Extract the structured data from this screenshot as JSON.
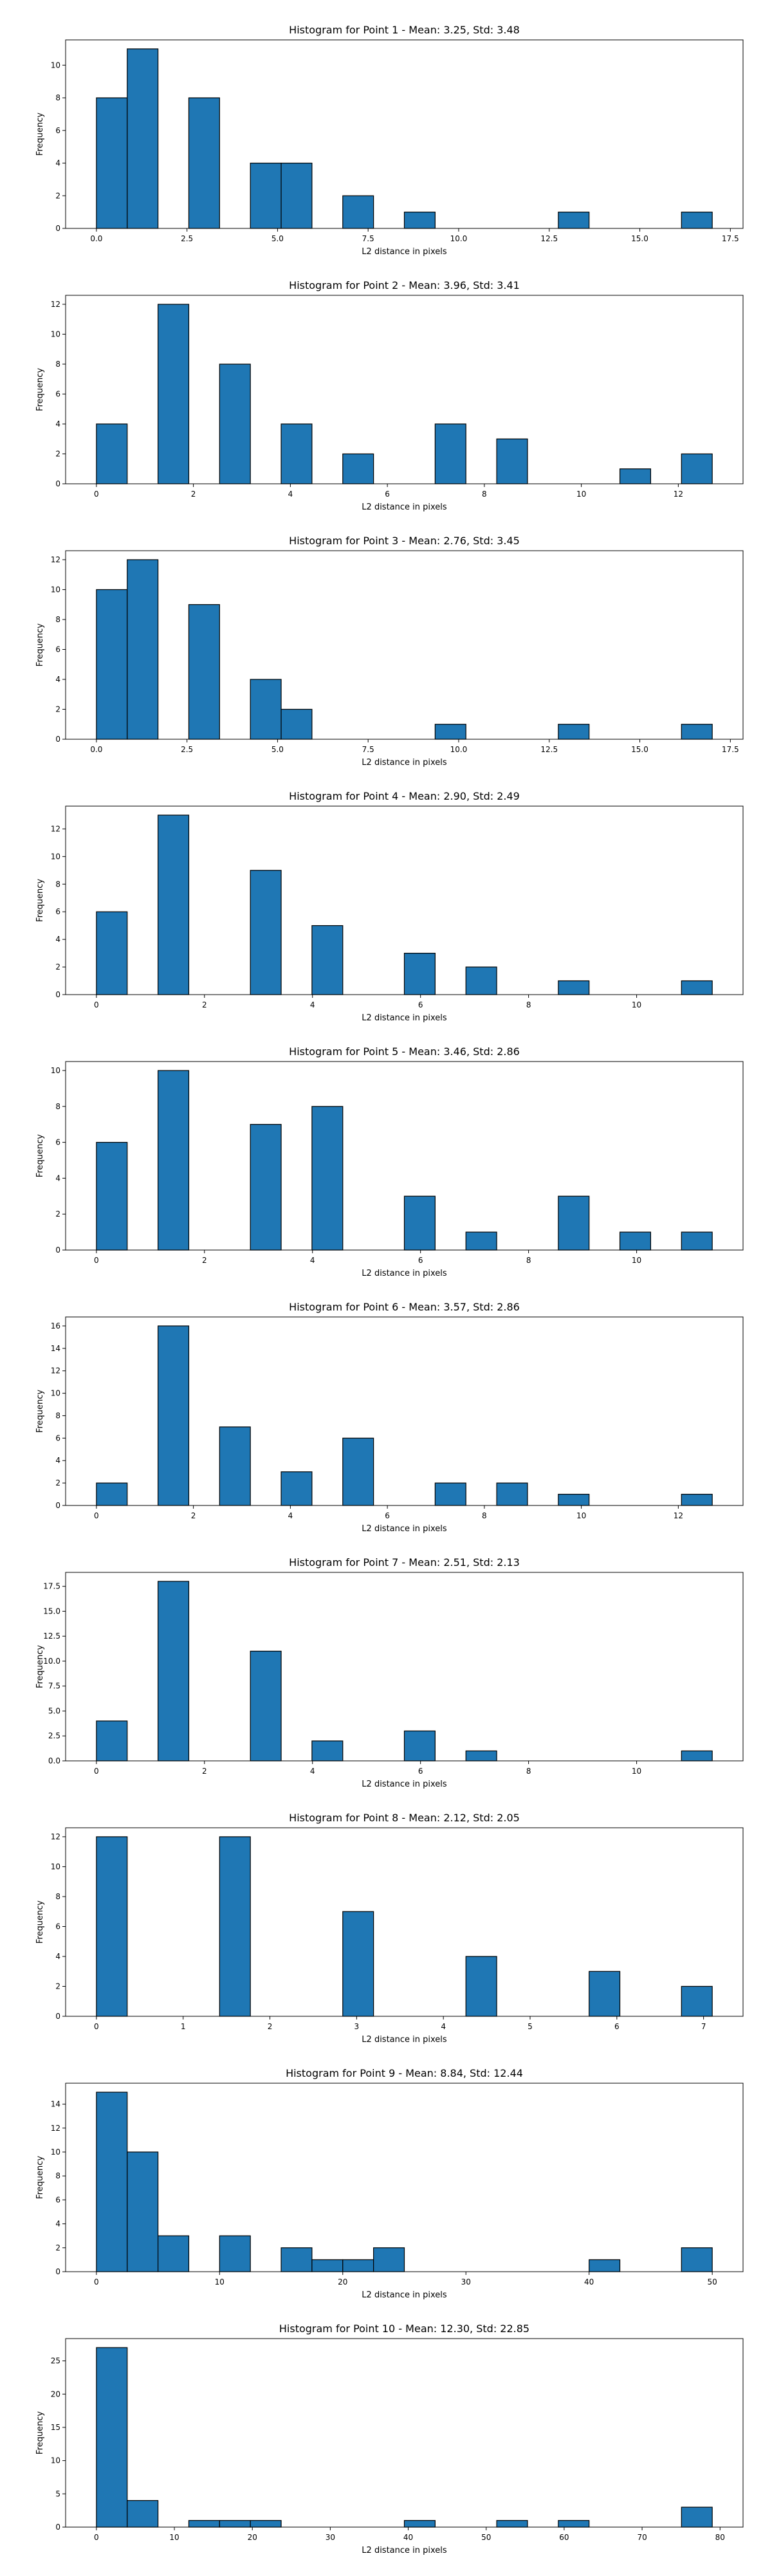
{
  "chart_data": [
    {
      "type": "histogram",
      "title": "Histogram for Point 1 - Mean: 3.25, Std: 3.48",
      "x_label": "L2 distance in pixels",
      "y_label": "Frequency",
      "color": "#1f77b4",
      "edge_color": "#000000",
      "bins": [
        0,
        0.85,
        1.7,
        2.55,
        3.4,
        4.25,
        5.1,
        5.95,
        6.8,
        7.65,
        8.5,
        9.35,
        10.2,
        11.05,
        11.9,
        12.75,
        13.6,
        14.45,
        15.3,
        16.15,
        17
      ],
      "values": [
        8,
        11,
        0,
        8,
        0,
        4,
        4,
        0,
        2,
        0,
        1,
        0,
        0,
        0,
        0,
        1,
        0,
        0,
        0,
        1
      ],
      "xlim": [
        -0.85,
        17.85
      ],
      "xticks": [
        {
          "value": 0,
          "label": "0.0"
        },
        2.5,
        {
          "value": 5,
          "label": "5.0"
        },
        7.5,
        {
          "value": 10,
          "label": "10.0"
        },
        12.5,
        {
          "value": 15,
          "label": "15.0"
        },
        17.5
      ],
      "ylim": [
        0,
        11.55
      ],
      "yticks": [
        0,
        2,
        4,
        6,
        8,
        10
      ]
    },
    {
      "type": "histogram",
      "title": "Histogram for Point 2 - Mean: 3.96, Std: 3.41",
      "x_label": "L2 distance in pixels",
      "y_label": "Frequency",
      "color": "#1f77b4",
      "edge_color": "#000000",
      "bins": [
        0,
        0.635,
        1.27,
        1.905,
        2.54,
        3.175,
        3.81,
        4.445,
        5.08,
        5.715,
        6.35,
        6.985,
        7.62,
        8.255,
        8.89,
        9.525,
        10.16,
        10.795,
        11.43,
        12.065,
        12.7
      ],
      "values": [
        4,
        0,
        12,
        0,
        8,
        0,
        4,
        0,
        2,
        0,
        0,
        4,
        0,
        3,
        0,
        0,
        0,
        1,
        0,
        2
      ],
      "xlim": [
        -0.635,
        13.335
      ],
      "xticks": [
        0,
        2,
        4,
        6,
        8,
        10,
        12
      ],
      "ylim": [
        0,
        12.6
      ],
      "yticks": [
        0,
        2,
        4,
        6,
        8,
        10,
        12
      ]
    },
    {
      "type": "histogram",
      "title": "Histogram for Point 3 - Mean: 2.76, Std: 3.45",
      "x_label": "L2 distance in pixels",
      "y_label": "Frequency",
      "color": "#1f77b4",
      "edge_color": "#000000",
      "bins": [
        0,
        0.85,
        1.7,
        2.55,
        3.4,
        4.25,
        5.1,
        5.95,
        6.8,
        7.65,
        8.5,
        9.35,
        10.2,
        11.05,
        11.9,
        12.75,
        13.6,
        14.45,
        15.3,
        16.15,
        17
      ],
      "values": [
        10,
        12,
        0,
        9,
        0,
        4,
        2,
        0,
        0,
        0,
        0,
        1,
        0,
        0,
        0,
        1,
        0,
        0,
        0,
        1
      ],
      "xlim": [
        -0.85,
        17.85
      ],
      "xticks": [
        {
          "value": 0,
          "label": "0.0"
        },
        2.5,
        {
          "value": 5,
          "label": "5.0"
        },
        7.5,
        {
          "value": 10,
          "label": "10.0"
        },
        12.5,
        {
          "value": 15,
          "label": "15.0"
        },
        17.5
      ],
      "ylim": [
        0,
        12.6
      ],
      "yticks": [
        0,
        2,
        4,
        6,
        8,
        10,
        12
      ]
    },
    {
      "type": "histogram",
      "title": "Histogram for Point 4 - Mean: 2.90, Std: 2.49",
      "x_label": "L2 distance in pixels",
      "y_label": "Frequency",
      "color": "#1f77b4",
      "edge_color": "#000000",
      "bins": [
        0,
        0.57,
        1.14,
        1.71,
        2.28,
        2.85,
        3.42,
        3.99,
        4.56,
        5.13,
        5.7,
        6.27,
        6.84,
        7.41,
        7.98,
        8.55,
        9.12,
        9.69,
        10.26,
        10.83,
        11.4
      ],
      "values": [
        6,
        0,
        13,
        0,
        0,
        9,
        0,
        5,
        0,
        0,
        3,
        0,
        2,
        0,
        0,
        1,
        0,
        0,
        0,
        1
      ],
      "xlim": [
        -0.57,
        11.97
      ],
      "xticks": [
        0,
        2,
        4,
        6,
        8,
        10
      ],
      "ylim": [
        0,
        13.65
      ],
      "yticks": [
        0,
        2,
        4,
        6,
        8,
        10,
        12
      ]
    },
    {
      "type": "histogram",
      "title": "Histogram for Point 5 - Mean: 3.46, Std: 2.86",
      "x_label": "L2 distance in pixels",
      "y_label": "Frequency",
      "color": "#1f77b4",
      "edge_color": "#000000",
      "bins": [
        0,
        0.57,
        1.14,
        1.71,
        2.28,
        2.85,
        3.42,
        3.99,
        4.56,
        5.13,
        5.7,
        6.27,
        6.84,
        7.41,
        7.98,
        8.55,
        9.12,
        9.69,
        10.26,
        10.83,
        11.4
      ],
      "values": [
        6,
        0,
        10,
        0,
        0,
        7,
        0,
        8,
        0,
        0,
        3,
        0,
        1,
        0,
        0,
        3,
        0,
        1,
        0,
        1
      ],
      "xlim": [
        -0.57,
        11.97
      ],
      "xticks": [
        0,
        2,
        4,
        6,
        8,
        10
      ],
      "ylim": [
        0,
        10.5
      ],
      "yticks": [
        0,
        2,
        4,
        6,
        8,
        10
      ]
    },
    {
      "type": "histogram",
      "title": "Histogram for Point 6 - Mean: 3.57, Std: 2.86",
      "x_label": "L2 distance in pixels",
      "y_label": "Frequency",
      "color": "#1f77b4",
      "edge_color": "#000000",
      "bins": [
        0,
        0.635,
        1.27,
        1.905,
        2.54,
        3.175,
        3.81,
        4.445,
        5.08,
        5.715,
        6.35,
        6.985,
        7.62,
        8.255,
        8.89,
        9.525,
        10.16,
        10.795,
        11.43,
        12.065,
        12.7
      ],
      "values": [
        2,
        0,
        16,
        0,
        7,
        0,
        3,
        0,
        6,
        0,
        0,
        2,
        0,
        2,
        0,
        1,
        0,
        0,
        0,
        1
      ],
      "xlim": [
        -0.635,
        13.335
      ],
      "xticks": [
        0,
        2,
        4,
        6,
        8,
        10,
        12
      ],
      "ylim": [
        0,
        16.8
      ],
      "yticks": [
        0,
        2,
        4,
        6,
        8,
        10,
        12,
        14,
        16
      ]
    },
    {
      "type": "histogram",
      "title": "Histogram for Point 7 - Mean: 2.51, Std: 2.13",
      "x_label": "L2 distance in pixels",
      "y_label": "Frequency",
      "color": "#1f77b4",
      "edge_color": "#000000",
      "bins": [
        0,
        0.57,
        1.14,
        1.71,
        2.28,
        2.85,
        3.42,
        3.99,
        4.56,
        5.13,
        5.7,
        6.27,
        6.84,
        7.41,
        7.98,
        8.55,
        9.12,
        9.69,
        10.26,
        10.83,
        11.4
      ],
      "values": [
        4,
        0,
        18,
        0,
        0,
        11,
        0,
        2,
        0,
        0,
        3,
        0,
        1,
        0,
        0,
        0,
        0,
        0,
        0,
        1
      ],
      "xlim": [
        -0.57,
        11.97
      ],
      "xticks": [
        0,
        2,
        4,
        6,
        8,
        10
      ],
      "ylim": [
        0,
        18.9
      ],
      "yticks": [
        {
          "value": 0,
          "label": "0.0"
        },
        2.5,
        {
          "value": 5,
          "label": "5.0"
        },
        7.5,
        {
          "value": 10,
          "label": "10.0"
        },
        12.5,
        {
          "value": 15,
          "label": "15.0"
        },
        17.5
      ]
    },
    {
      "type": "histogram",
      "title": "Histogram for Point 8 - Mean: 2.12, Std: 2.05",
      "x_label": "L2 distance in pixels",
      "y_label": "Frequency",
      "color": "#1f77b4",
      "edge_color": "#000000",
      "bins": [
        0,
        0.355,
        0.71,
        1.065,
        1.42,
        1.775,
        2.13,
        2.485,
        2.84,
        3.195,
        3.55,
        3.905,
        4.26,
        4.615,
        4.97,
        5.325,
        5.68,
        6.035,
        6.39,
        6.745,
        7.1
      ],
      "values": [
        12,
        0,
        0,
        0,
        12,
        0,
        0,
        0,
        7,
        0,
        0,
        0,
        4,
        0,
        0,
        0,
        3,
        0,
        0,
        2
      ],
      "xlim": [
        -0.355,
        7.455
      ],
      "xticks": [
        0,
        1,
        2,
        3,
        4,
        5,
        6,
        7
      ],
      "ylim": [
        0,
        12.6
      ],
      "yticks": [
        0,
        2,
        4,
        6,
        8,
        10,
        12
      ]
    },
    {
      "type": "histogram",
      "title": "Histogram for Point 9 - Mean: 8.84, Std: 12.44",
      "x_label": "L2 distance in pixels",
      "y_label": "Frequency",
      "color": "#1f77b4",
      "edge_color": "#000000",
      "bins": [
        0,
        2.5,
        5,
        7.5,
        10,
        12.5,
        15,
        17.5,
        20,
        22.5,
        25,
        27.5,
        30,
        32.5,
        35,
        37.5,
        40,
        42.5,
        45,
        47.5,
        50
      ],
      "values": [
        15,
        10,
        3,
        0,
        3,
        0,
        2,
        1,
        1,
        2,
        0,
        0,
        0,
        0,
        0,
        0,
        1,
        0,
        0,
        2
      ],
      "xlim": [
        -2.5,
        52.5
      ],
      "xticks": [
        0,
        10,
        20,
        30,
        40,
        50
      ],
      "ylim": [
        0,
        15.75
      ],
      "yticks": [
        0,
        2,
        4,
        6,
        8,
        10,
        12,
        14
      ]
    },
    {
      "type": "histogram",
      "title": "Histogram for Point 10 - Mean: 12.30, Std: 22.85",
      "x_label": "L2 distance in pixels",
      "y_label": "Frequency",
      "color": "#1f77b4",
      "edge_color": "#000000",
      "bins": [
        0,
        3.95,
        7.9,
        11.85,
        15.8,
        19.75,
        23.7,
        27.65,
        31.6,
        35.55,
        39.5,
        43.45,
        47.4,
        51.35,
        55.3,
        59.25,
        63.2,
        67.15,
        71.1,
        75.05,
        79
      ],
      "values": [
        27,
        4,
        0,
        1,
        1,
        1,
        0,
        0,
        0,
        0,
        1,
        0,
        0,
        1,
        0,
        1,
        0,
        0,
        0,
        3
      ],
      "xlim": [
        -3.95,
        82.95
      ],
      "xticks": [
        0,
        10,
        20,
        30,
        40,
        50,
        60,
        70,
        80
      ],
      "ylim": [
        0,
        28.35
      ],
      "yticks": [
        0,
        5,
        10,
        15,
        20,
        25
      ]
    }
  ]
}
